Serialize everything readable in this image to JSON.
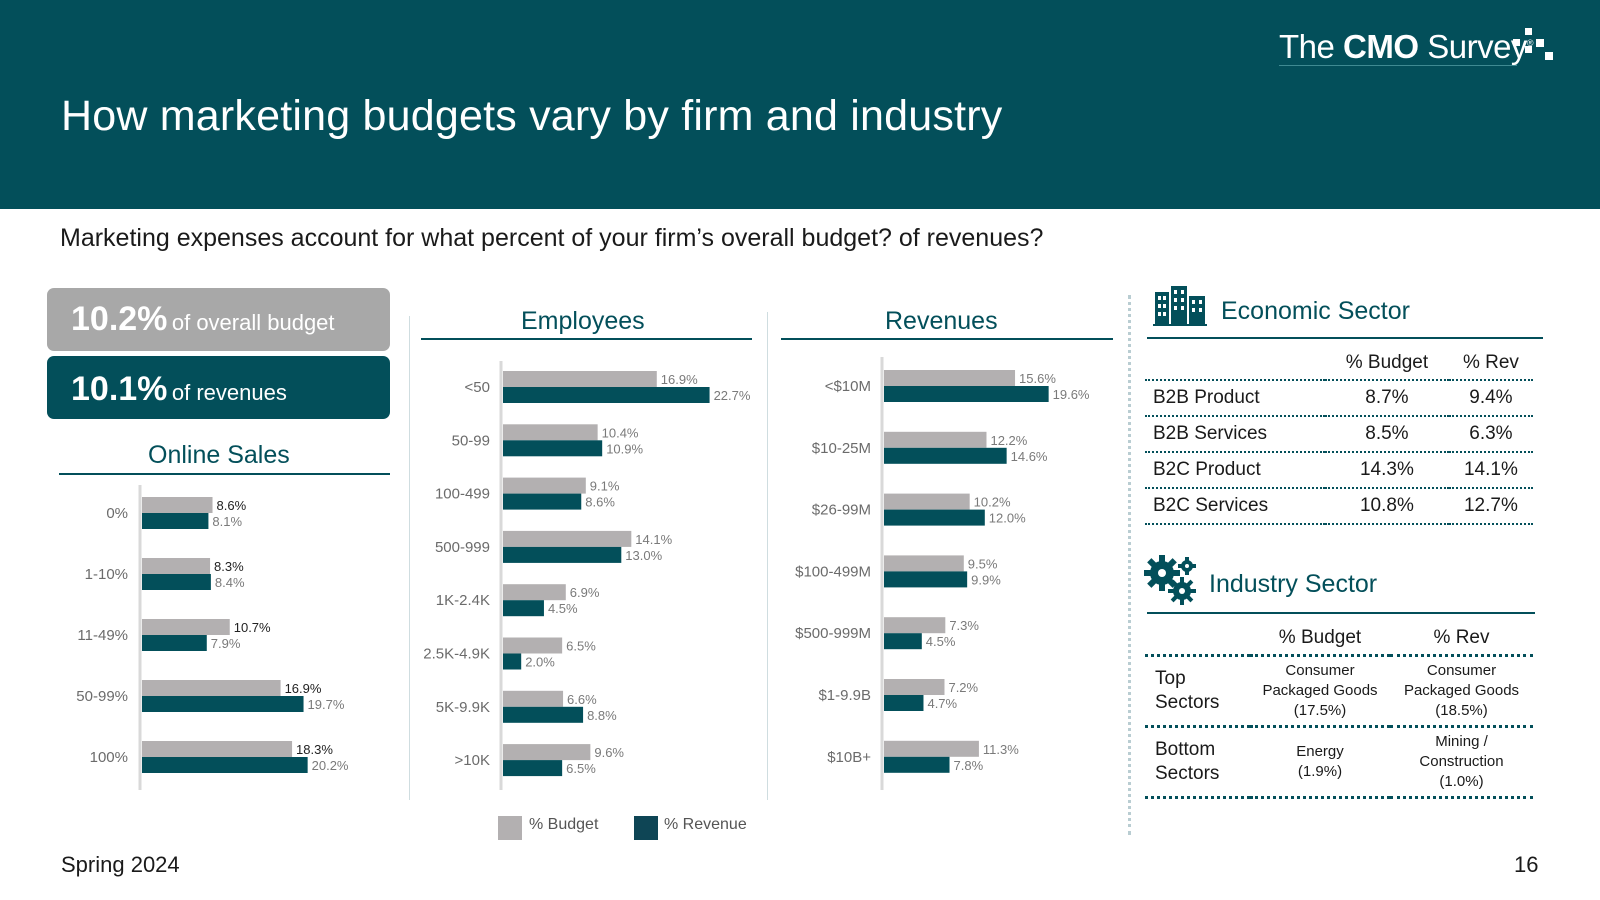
{
  "header": {
    "title": "How marketing budgets vary by firm and industry",
    "logo_text_regular_1": "The ",
    "logo_text_bold": "CMO",
    "logo_text_regular_2": " Survey",
    "logo_reg": "®"
  },
  "subtitle": "Marketing expenses account for what percent of your firm’s overall budget? of revenues?",
  "stats": {
    "budget_value": "10.2%",
    "budget_label": "of overall budget",
    "revenue_value": "10.1%",
    "revenue_label": "of revenues"
  },
  "colors": {
    "budget": "#b3b0b1",
    "revenue": "#034f5a",
    "accent": "#034f5a"
  },
  "chart_data": [
    {
      "type": "bar",
      "title": "Online Sales",
      "categories": [
        "0%",
        "1-10%",
        "11-49%",
        "50-99%",
        "100%"
      ],
      "series": [
        {
          "name": "% Budget",
          "values": [
            8.6,
            8.3,
            10.7,
            16.9,
            18.3
          ]
        },
        {
          "name": "% Revenue",
          "values": [
            8.1,
            8.4,
            7.9,
            19.7,
            20.2
          ]
        }
      ],
      "labels": {
        "budget": [
          "8.6%",
          "8.3%",
          "10.7%",
          "16.9%",
          "18.3%"
        ],
        "revenue": [
          "8.1%",
          "8.4%",
          "7.9%",
          "19.7%",
          "20.2%"
        ]
      }
    },
    {
      "type": "bar",
      "title": "Employees",
      "categories": [
        "<50",
        "50-99",
        "100-499",
        "500-999",
        "1K-2.4K",
        "2.5K-4.9K",
        "5K-9.9K",
        ">10K"
      ],
      "series": [
        {
          "name": "% Budget",
          "values": [
            16.9,
            10.4,
            9.1,
            14.1,
            6.9,
            6.5,
            6.6,
            9.6
          ]
        },
        {
          "name": "% Revenue",
          "values": [
            22.7,
            10.9,
            8.6,
            13.0,
            4.5,
            2.0,
            8.8,
            6.5
          ]
        }
      ],
      "labels": {
        "budget": [
          "16.9%",
          "10.4%",
          "9.1%",
          "14.1%",
          "6.9%",
          "6.5%",
          "6.6%",
          "9.6%"
        ],
        "revenue": [
          "22.7%",
          "10.9%",
          "8.6%",
          "13.0%",
          "4.5%",
          "2.0%",
          "8.8%",
          "6.5%"
        ]
      }
    },
    {
      "type": "bar",
      "title": "Revenues",
      "categories": [
        "<$10M",
        "$10-25M",
        "$26-99M",
        "$100-499M",
        "$500-999M",
        "$1-9.9B",
        "$10B+"
      ],
      "series": [
        {
          "name": "% Budget",
          "values": [
            15.6,
            12.2,
            10.2,
            9.5,
            7.3,
            7.2,
            11.3
          ]
        },
        {
          "name": "% Revenue",
          "values": [
            19.6,
            14.6,
            12.0,
            9.9,
            4.5,
            4.7,
            7.8
          ]
        }
      ],
      "labels": {
        "budget": [
          "15.6%",
          "12.2%",
          "10.2%",
          "9.5%",
          "7.3%",
          "7.2%",
          "11.3%"
        ],
        "revenue": [
          "19.6%",
          "14.6%",
          "12.0%",
          "9.9%",
          "4.5%",
          "4.7%",
          "7.8%"
        ]
      }
    }
  ],
  "legend": {
    "budget": "% Budget",
    "revenue": "% Revenue"
  },
  "economic_sector": {
    "title": "Economic Sector",
    "col_budget": "% Budget",
    "col_rev": "% Rev",
    "rows": [
      {
        "label": "B2B Product",
        "budget": "8.7%",
        "rev": "9.4%"
      },
      {
        "label": "B2B Services",
        "budget": "8.5%",
        "rev": "6.3%"
      },
      {
        "label": "B2C Product",
        "budget": "14.3%",
        "rev": "14.1%"
      },
      {
        "label": "B2C Services",
        "budget": "10.8%",
        "rev": "12.7%"
      }
    ]
  },
  "industry_sector": {
    "title": "Industry Sector",
    "col_budget": "% Budget",
    "col_rev": "% Rev",
    "top_label_1": "Top",
    "top_label_2": "Sectors",
    "top_budget_1": "Consumer",
    "top_budget_2": "Packaged Goods",
    "top_budget_3": "(17.5%)",
    "top_rev_1": "Consumer",
    "top_rev_2": "Packaged Goods",
    "top_rev_3": "(18.5%)",
    "bottom_label_1": "Bottom",
    "bottom_label_2": "Sectors",
    "bottom_budget_1": "Energy",
    "bottom_budget_2": "(1.9%)",
    "bottom_rev_1": "Mining /",
    "bottom_rev_2": "Construction",
    "bottom_rev_3": "(1.0%)"
  },
  "footer": {
    "season": "Spring 2024",
    "page": "16"
  }
}
